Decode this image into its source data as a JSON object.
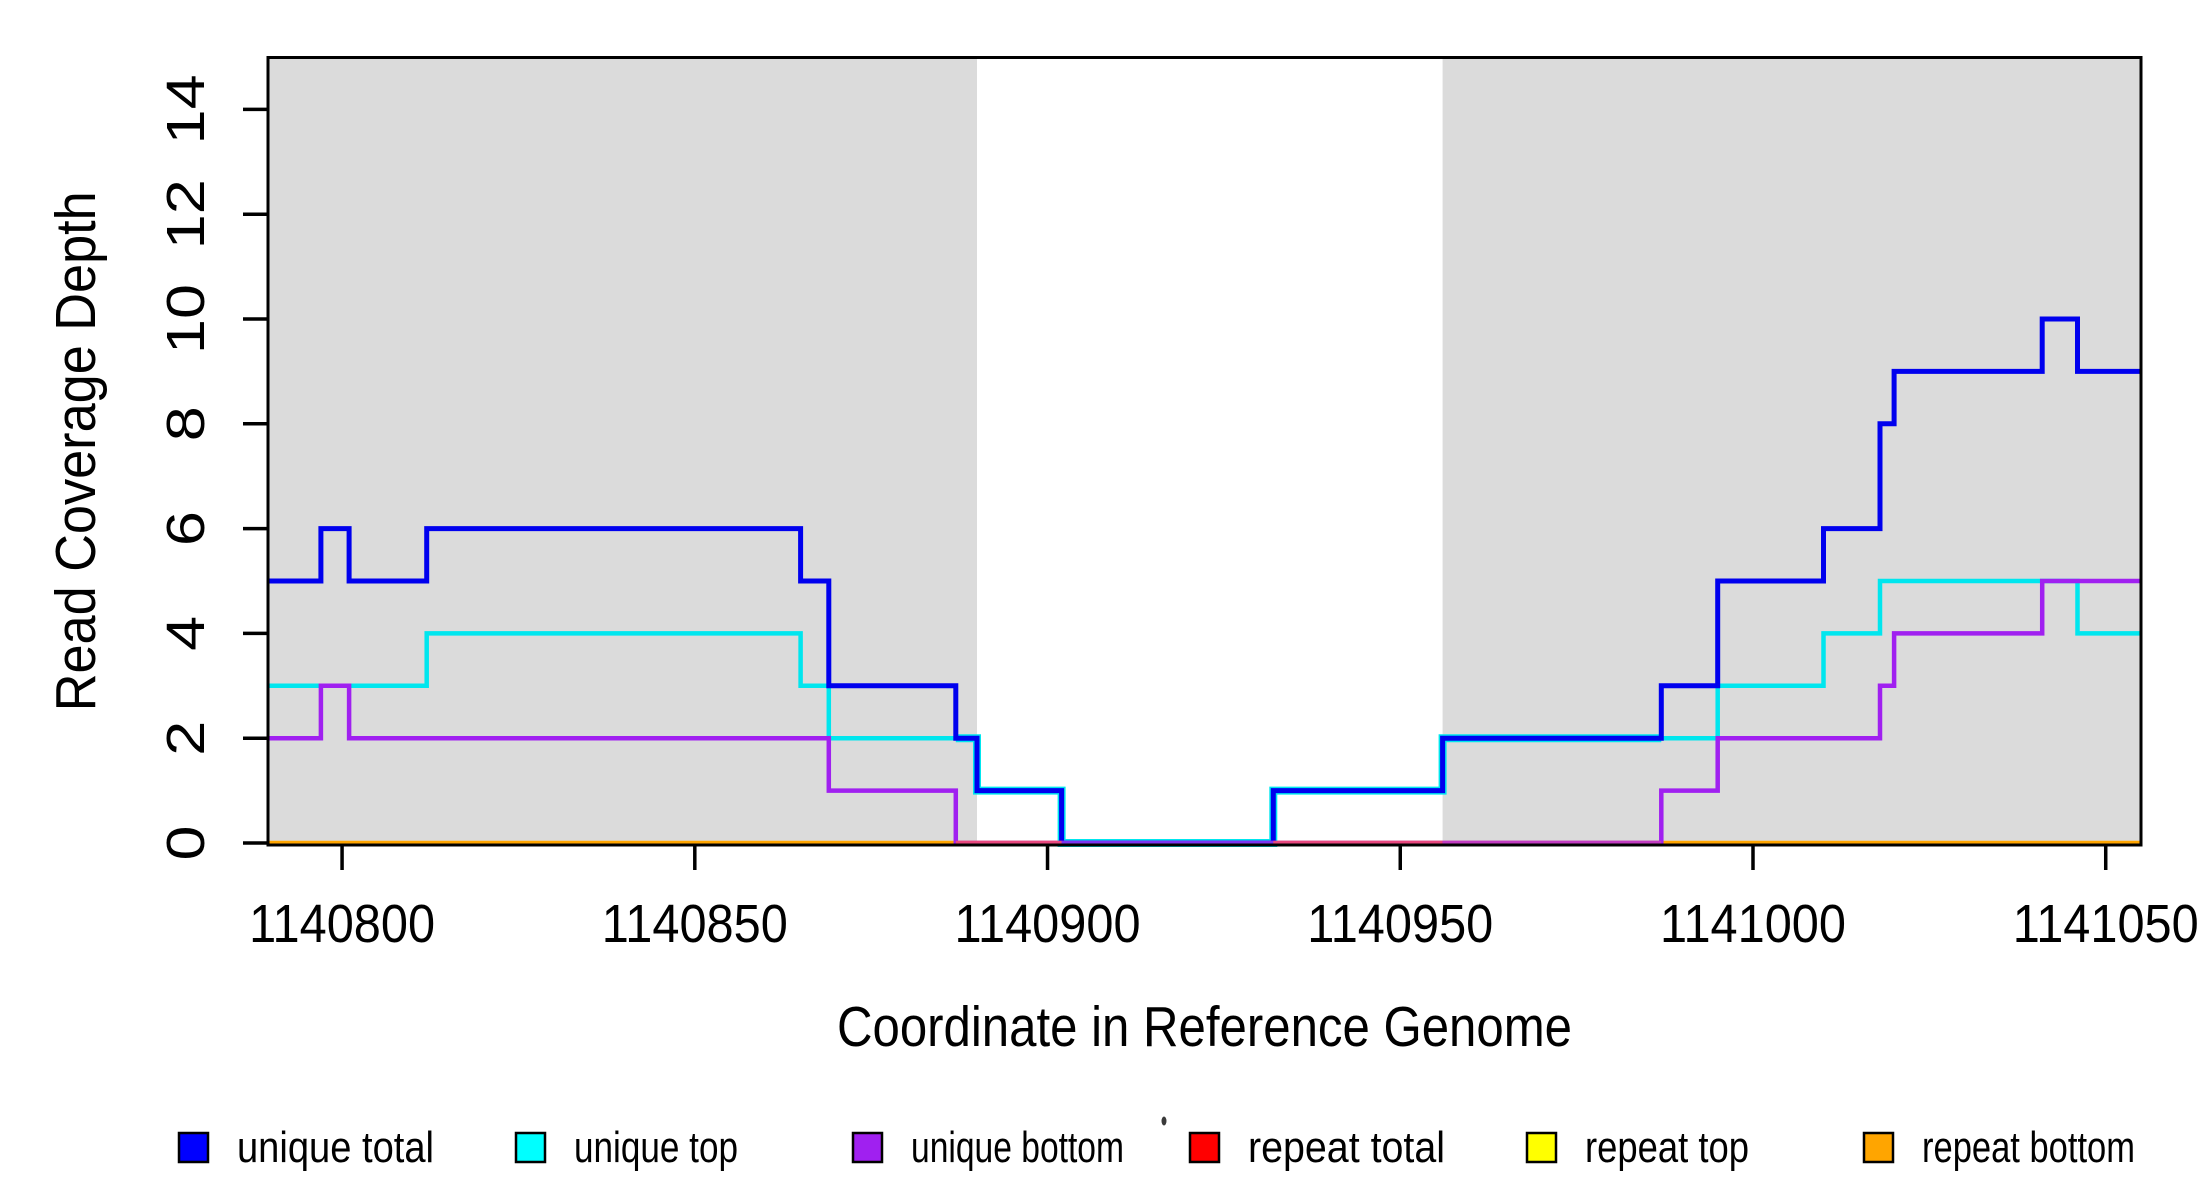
{
  "page": {
    "background": "#FFFFFF"
  },
  "chart_data": {
    "type": "line",
    "subtype": "step-coverage-plot",
    "xlabel": "Coordinate in Reference Genome",
    "ylabel": "Read Coverage Depth",
    "xlim": [
      1140789.5,
      1141055.0
    ],
    "ylim": [
      0,
      15
    ],
    "grid": "off",
    "x_ticks": [
      {
        "value": 1140800,
        "label": "1140800"
      },
      {
        "value": 1140850,
        "label": "1140850"
      },
      {
        "value": 1140900,
        "label": "1140900"
      },
      {
        "value": 1140950,
        "label": "1140950"
      },
      {
        "value": 1141000,
        "label": "1141000"
      },
      {
        "value": 1141050,
        "label": "1141050"
      }
    ],
    "y_ticks": [
      {
        "value": 0,
        "label": "0"
      },
      {
        "value": 2,
        "label": "2"
      },
      {
        "value": 4,
        "label": "4"
      },
      {
        "value": 6,
        "label": "6"
      },
      {
        "value": 8,
        "label": "8"
      },
      {
        "value": 10,
        "label": "10"
      },
      {
        "value": 12,
        "label": "12"
      },
      {
        "value": 14,
        "label": "14"
      }
    ],
    "shade_color": "#DBDBDB",
    "shaded_regions": [
      {
        "from": 1140789.5,
        "to": 1140890.0
      },
      {
        "from": 1140956.0,
        "to": 1141055.0
      }
    ],
    "series": [
      {
        "name": "unique total",
        "color": "#0000EE",
        "width": 5,
        "breakpoints": [
          [
            1140789.5,
            5
          ],
          [
            1140797,
            6
          ],
          [
            1140801,
            5
          ],
          [
            1140812,
            6
          ],
          [
            1140865,
            5
          ],
          [
            1140869,
            3
          ],
          [
            1140887,
            2
          ],
          [
            1140890,
            1
          ],
          [
            1140902,
            0
          ],
          [
            1140932,
            1
          ],
          [
            1140956,
            2
          ],
          [
            1140987,
            3
          ],
          [
            1140995,
            5
          ],
          [
            1141010,
            6
          ],
          [
            1141018,
            8
          ],
          [
            1141020,
            9
          ],
          [
            1141041,
            10
          ],
          [
            1141046,
            9
          ]
        ]
      },
      {
        "name": "unique top",
        "color": "#00E6EE",
        "width": 4.5,
        "breakpoints": [
          [
            1140789.5,
            3
          ],
          [
            1140812,
            4
          ],
          [
            1140865,
            3
          ],
          [
            1140869,
            2
          ],
          [
            1140890,
            1
          ],
          [
            1140902,
            0
          ],
          [
            1140932,
            1
          ],
          [
            1140956,
            2
          ],
          [
            1140995,
            3
          ],
          [
            1141010,
            4
          ],
          [
            1141018,
            5
          ],
          [
            1141046,
            4
          ]
        ]
      },
      {
        "name": "unique bottom",
        "color": "#A020F0",
        "width": 4.5,
        "breakpoints": [
          [
            1140789.5,
            2
          ],
          [
            1140797,
            3
          ],
          [
            1140801,
            2
          ],
          [
            1140869,
            1
          ],
          [
            1140887,
            0
          ],
          [
            1140987,
            1
          ],
          [
            1140995,
            2
          ],
          [
            1141018,
            3
          ],
          [
            1141020,
            4
          ],
          [
            1141041,
            5
          ]
        ]
      },
      {
        "name": "repeat total",
        "color": "#FF0000",
        "width": 3.5,
        "breakpoints": [
          [
            1140789.5,
            0
          ]
        ]
      },
      {
        "name": "repeat top",
        "color": "#FFFF00",
        "width": 3.5,
        "breakpoints": [
          [
            1140789.5,
            0
          ]
        ]
      },
      {
        "name": "repeat bottom",
        "color": "#FFA500",
        "width": 4.5,
        "breakpoints": [
          [
            1140789.5,
            0
          ]
        ]
      }
    ],
    "overlap_halo": {
      "comment": "blue total coincides with cyan top here; cyan fringe shows around blue line",
      "color": "#00E6EE",
      "width": 8,
      "end": 1140987,
      "breakpoints": [
        [
          1140887,
          2
        ],
        [
          1140890,
          1
        ],
        [
          1140902,
          0
        ],
        [
          1140932,
          1
        ],
        [
          1140956,
          2
        ]
      ]
    },
    "zero_line_segments": [
      {
        "from": 1140887,
        "to": 1140902,
        "color": "#E8477E"
      },
      {
        "from": 1140902,
        "to": 1140932,
        "color": "#7C33EE"
      },
      {
        "from": 1140932,
        "to": 1140956,
        "color": "#E8477E"
      },
      {
        "from": 1140956,
        "to": 1140987,
        "color": "#C13BC1"
      }
    ],
    "legend": {
      "items": [
        {
          "label": "unique total",
          "color": "#0000FF"
        },
        {
          "label": "unique top",
          "color": "#00FFFF"
        },
        {
          "label": "unique bottom",
          "color": "#A020F0"
        },
        {
          "label": "repeat total",
          "color": "#FF0000"
        },
        {
          "label": "repeat top",
          "color": "#FFFF00"
        },
        {
          "label": "repeat bottom",
          "color": "#FFA500"
        }
      ]
    },
    "axis_color": "#000000",
    "text_color": "#000000"
  }
}
